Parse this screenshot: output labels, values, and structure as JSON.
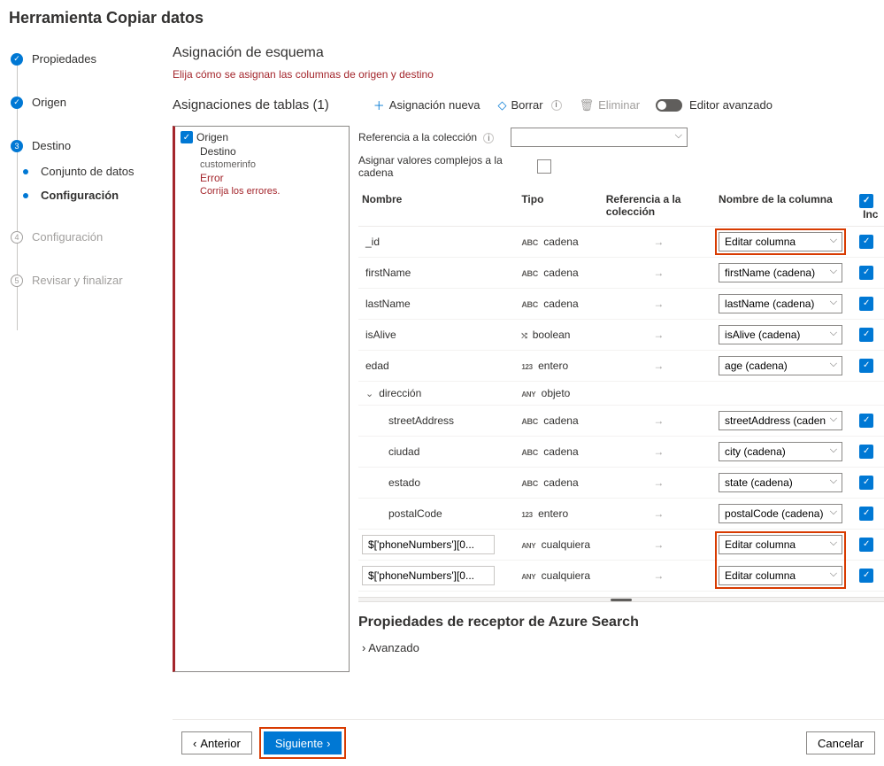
{
  "page_title": "Herramienta Copiar datos",
  "sidebar": {
    "steps": [
      {
        "label": "Propiedades",
        "state": "done"
      },
      {
        "label": "Origen",
        "state": "done"
      },
      {
        "label": "Destino",
        "state": "current",
        "num": "3"
      },
      {
        "label": "Configuración",
        "state": "future",
        "num": "4"
      },
      {
        "label": "Revisar y finalizar",
        "state": "future",
        "num": "5"
      }
    ],
    "substeps": [
      {
        "label": "Conjunto de datos",
        "bold": false
      },
      {
        "label": "Configuración",
        "bold": true
      }
    ]
  },
  "section": {
    "title": "Asignación de esquema",
    "subtitle": "Elija cómo se asignan las columnas de origen y destino"
  },
  "table_mappings": {
    "title": "Asignaciones de tablas (1)",
    "toolbar": {
      "new": "Asignación nueva",
      "clear": "Borrar",
      "delete": "Eliminar",
      "advanced": "Editor avanzado"
    }
  },
  "tree": {
    "origen": "Origen",
    "destino": "Destino",
    "destino_val": "customerinfo",
    "error": "Error",
    "error_msg": "Corrija los errores."
  },
  "mapping": {
    "ref_label": "Referencia a la colección",
    "assign_label": "Asignar valores complejos a la cadena",
    "headers": {
      "name": "Nombre",
      "type": "Tipo",
      "ref": "Referencia a la colección",
      "dest": "Nombre de la columna",
      "inc": "Inc"
    },
    "rows": [
      {
        "name": "_id",
        "input": false,
        "indent": 0,
        "type_badge": "abc",
        "type": "cadena",
        "dest": "Editar columna",
        "highlight": true
      },
      {
        "name": "firstName",
        "input": false,
        "indent": 0,
        "type_badge": "abc",
        "type": "cadena",
        "dest": "firstName (cadena)"
      },
      {
        "name": "lastName",
        "input": false,
        "indent": 0,
        "type_badge": "abc",
        "type": "cadena",
        "dest": "lastName (cadena)"
      },
      {
        "name": "isAlive",
        "input": false,
        "indent": 0,
        "type_badge": "⤭",
        "type": "boolean",
        "dest": "isAlive (cadena)"
      },
      {
        "name": "edad",
        "input": false,
        "indent": 0,
        "type_badge": "123",
        "type": "entero",
        "dest": "age (cadena)"
      },
      {
        "name": "dirección",
        "input": false,
        "indent": 0,
        "type_badge": "ANY",
        "type": "objeto",
        "dest": null,
        "expandable": true
      },
      {
        "name": "streetAddress",
        "input": false,
        "indent": 1,
        "type_badge": "abc",
        "type": "cadena",
        "dest": "streetAddress (cadena)"
      },
      {
        "name": "ciudad",
        "input": false,
        "indent": 1,
        "type_badge": "abc",
        "type": "cadena",
        "dest": "city (cadena)"
      },
      {
        "name": "estado",
        "input": false,
        "indent": 1,
        "type_badge": "abc",
        "type": "cadena",
        "dest": "state (cadena)"
      },
      {
        "name": "postalCode",
        "input": false,
        "indent": 1,
        "type_badge": "123",
        "type": "entero",
        "dest": "postalCode (cadena)"
      },
      {
        "name": "$['phoneNumbers'][0...",
        "input": true,
        "indent": 0,
        "type_badge": "ANY",
        "type": "cualquiera",
        "dest": "Editar columna",
        "highlight": true
      },
      {
        "name": "$['phoneNumbers'][0...",
        "input": true,
        "indent": 0,
        "type_badge": "ANY",
        "type": "cualquiera",
        "dest": "Editar columna",
        "highlight": true
      }
    ]
  },
  "receptor": {
    "title": "Propiedades de receptor de Azure Search",
    "advanced": "Avanzado"
  },
  "footer": {
    "prev": "Anterior",
    "next": "Siguiente",
    "cancel": "Cancelar"
  },
  "colors": {
    "primary": "#0078d4",
    "error": "#a4262c",
    "highlight": "#d83b01"
  }
}
